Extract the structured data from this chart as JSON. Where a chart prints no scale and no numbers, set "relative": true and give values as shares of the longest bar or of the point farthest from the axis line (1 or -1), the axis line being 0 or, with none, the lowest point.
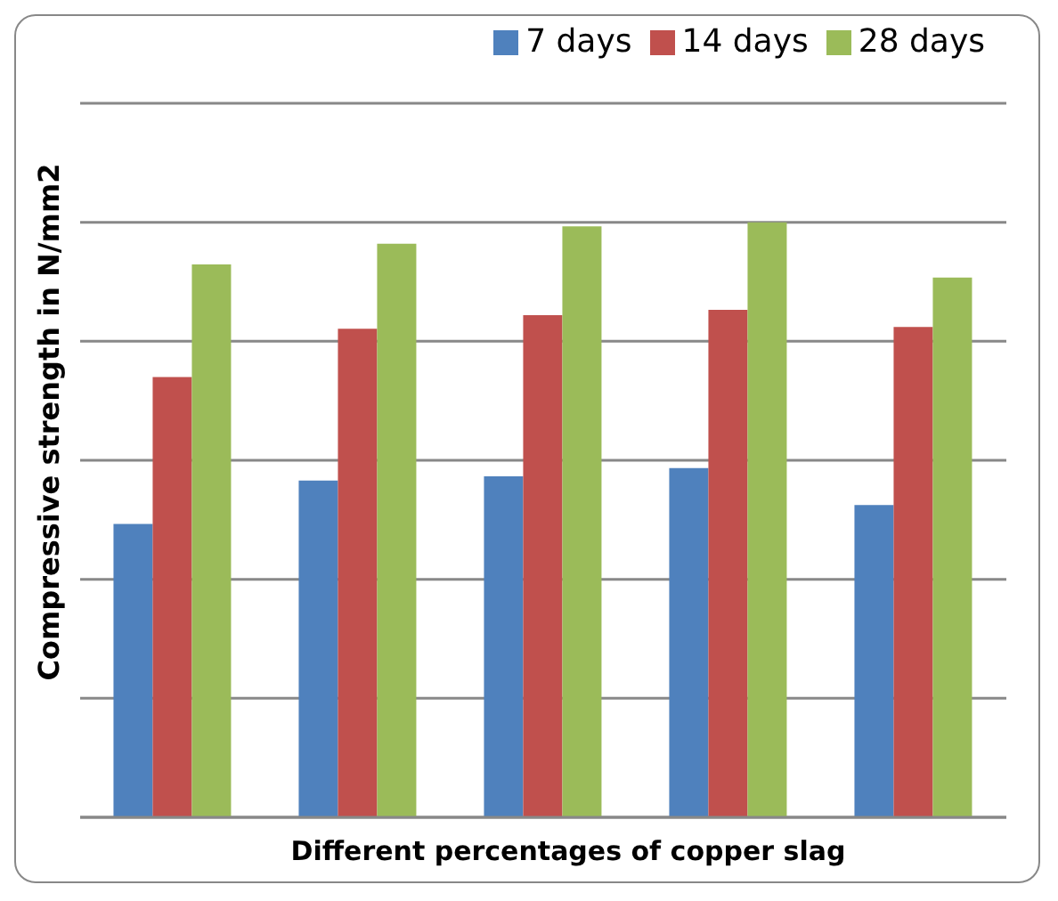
{
  "chart_data": {
    "type": "bar",
    "relative": true,
    "xlabel": "Different percentages of copper slag",
    "ylabel": "Compressive strength in N/mm2",
    "categories": [
      null,
      null,
      null,
      null,
      null
    ],
    "series": [
      {
        "name": "7 days",
        "color": "#4f81bd",
        "values": [
          0.493,
          0.566,
          0.573,
          0.587,
          0.525
        ]
      },
      {
        "name": "14 days",
        "color": "#c0504d",
        "values": [
          0.74,
          0.821,
          0.844,
          0.853,
          0.824
        ]
      },
      {
        "name": "28 days",
        "color": "#9bbb59",
        "values": [
          0.929,
          0.964,
          0.993,
          1,
          0.907
        ]
      }
    ],
    "grid": "y",
    "legend": "top right"
  }
}
